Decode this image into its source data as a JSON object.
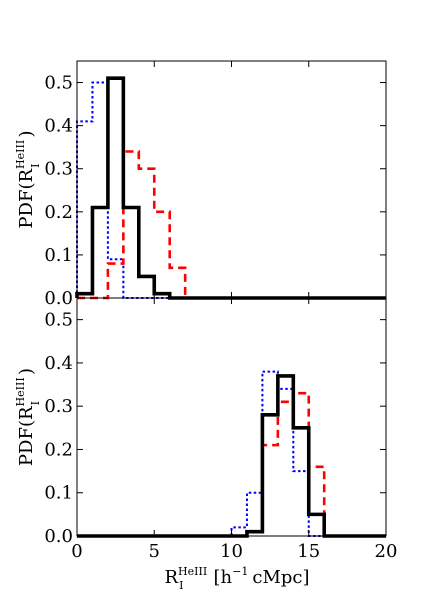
{
  "chart_data": [
    {
      "type": "step",
      "xlim": [
        0,
        20
      ],
      "ylim": [
        0,
        0.55
      ],
      "xticks": [
        "0",
        "5",
        "10",
        "15",
        "20"
      ],
      "yticks": [
        "0.0",
        "0.1",
        "0.2",
        "0.3",
        "0.4",
        "0.5"
      ],
      "ylabel": {
        "base": "PDF(R",
        "sup": "HeIII",
        "sub": "I",
        "close": ")"
      },
      "bin_edges": [
        0,
        1,
        2,
        3,
        4,
        5,
        6,
        7,
        8,
        9,
        10,
        11,
        12,
        13,
        14,
        15,
        16,
        17,
        18,
        19,
        20
      ],
      "series": [
        {
          "style": "solid",
          "color": "#000000",
          "values": [
            0.01,
            0.21,
            0.51,
            0.21,
            0.05,
            0.01,
            0,
            0,
            0,
            0,
            0,
            0,
            0,
            0,
            0,
            0,
            0,
            0,
            0,
            0
          ]
        },
        {
          "style": "dashed",
          "color": "#ff0000",
          "values": [
            0,
            0,
            0.08,
            0.34,
            0.3,
            0.2,
            0.07,
            0,
            0,
            0,
            0,
            0,
            0,
            0,
            0,
            0,
            0,
            0,
            0,
            0
          ]
        },
        {
          "style": "dotted",
          "color": "#0000ff",
          "values": [
            0.41,
            0.5,
            0.09,
            0,
            0,
            0,
            0,
            0,
            0,
            0,
            0,
            0,
            0,
            0,
            0,
            0,
            0,
            0,
            0,
            0
          ]
        }
      ]
    },
    {
      "type": "step",
      "xlim": [
        0,
        20
      ],
      "ylim": [
        0,
        0.55
      ],
      "xticks": [
        "0",
        "5",
        "10",
        "15",
        "20"
      ],
      "yticks": [
        "0.0",
        "0.1",
        "0.2",
        "0.3",
        "0.4",
        "0.5"
      ],
      "ylabel": {
        "base": "PDF(R",
        "sup": "HeIII",
        "sub": "I",
        "close": ")"
      },
      "xlabel": {
        "base": "R",
        "sup": "HeIII",
        "sub": "I",
        "rest": "[h",
        "exp": "−1",
        "unit": "cMpc]"
      },
      "bin_edges": [
        0,
        1,
        2,
        3,
        4,
        5,
        6,
        7,
        8,
        9,
        10,
        11,
        12,
        13,
        14,
        15,
        16,
        17,
        18,
        19,
        20
      ],
      "series": [
        {
          "style": "solid",
          "color": "#000000",
          "values": [
            0,
            0,
            0,
            0,
            0,
            0,
            0,
            0,
            0,
            0,
            0,
            0.01,
            0.28,
            0.37,
            0.25,
            0.05,
            0,
            0,
            0,
            0
          ]
        },
        {
          "style": "dashed",
          "color": "#ff0000",
          "values": [
            0,
            0,
            0,
            0,
            0,
            0,
            0,
            0,
            0,
            0,
            0,
            0.01,
            0.21,
            0.31,
            0.33,
            0.16,
            0,
            0,
            0,
            0
          ]
        },
        {
          "style": "dotted",
          "color": "#0000ff",
          "values": [
            0,
            0,
            0,
            0,
            0,
            0,
            0,
            0,
            0,
            0,
            0.02,
            0.1,
            0.38,
            0.34,
            0.15,
            0,
            0,
            0,
            0,
            0
          ]
        }
      ]
    }
  ]
}
